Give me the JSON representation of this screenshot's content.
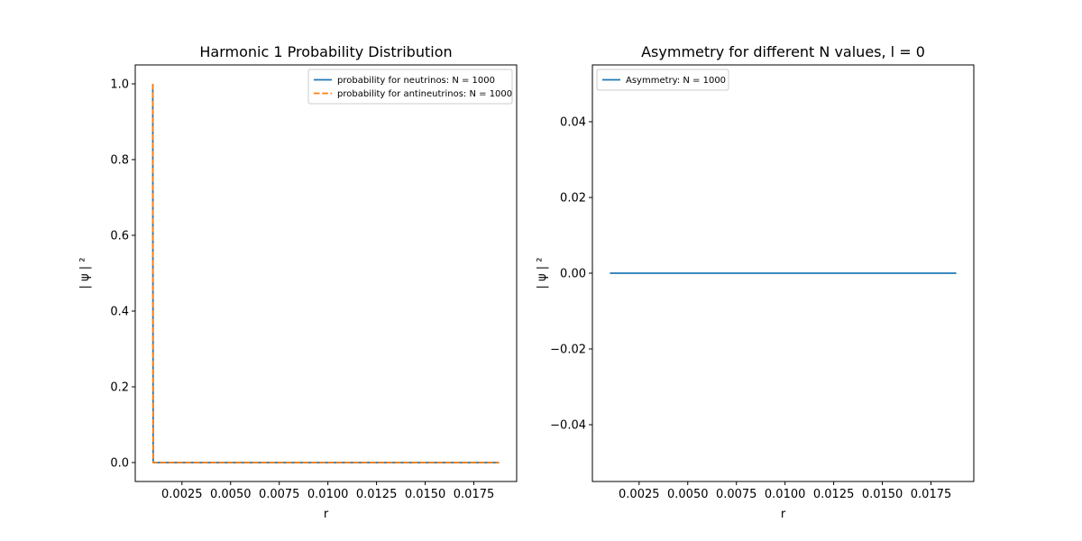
{
  "chart_data": [
    {
      "type": "line",
      "title": "Harmonic 1 Probability Distribution",
      "xlabel": "r",
      "ylabel": "| ψ | ²",
      "xlim": [
        0.0001,
        0.0197
      ],
      "ylim": [
        -0.05,
        1.05
      ],
      "xticks": [
        0.0025,
        0.005,
        0.0075,
        0.01,
        0.0125,
        0.015,
        0.0175
      ],
      "xtick_labels": [
        "0.0025",
        "0.0050",
        "0.0075",
        "0.0100",
        "0.0125",
        "0.0150",
        "0.0175"
      ],
      "yticks": [
        0.0,
        0.2,
        0.4,
        0.6,
        0.8,
        1.0
      ],
      "ytick_labels": [
        "0.0",
        "0.2",
        "0.4",
        "0.6",
        "0.8",
        "1.0"
      ],
      "grid": false,
      "legend_position": "upper-right",
      "series": [
        {
          "name": "probability for neutrinos: N = 1000",
          "color": "#1f77b4",
          "style": "solid",
          "x": [
            0.001,
            0.00102,
            0.00104,
            0.0188
          ],
          "y": [
            1.0,
            0.0,
            0.0,
            0.0
          ]
        },
        {
          "name": "probability for antineutrinos: N = 1000",
          "color": "#ff7f0e",
          "style": "dashed",
          "x": [
            0.001,
            0.00102,
            0.00104,
            0.0188
          ],
          "y": [
            1.0,
            0.0,
            0.0,
            0.0
          ]
        }
      ]
    },
    {
      "type": "line",
      "title": "Asymmetry for different N values, l = 0",
      "xlabel": "r",
      "ylabel": "| ψ | ²",
      "xlim": [
        0.0001,
        0.0197
      ],
      "ylim": [
        -0.055,
        0.055
      ],
      "xticks": [
        0.0025,
        0.005,
        0.0075,
        0.01,
        0.0125,
        0.015,
        0.0175
      ],
      "xtick_labels": [
        "0.0025",
        "0.0050",
        "0.0075",
        "0.0100",
        "0.0125",
        "0.0150",
        "0.0175"
      ],
      "yticks": [
        -0.04,
        -0.02,
        0.0,
        0.02,
        0.04
      ],
      "ytick_labels": [
        "−0.04",
        "−0.02",
        "0.00",
        "0.02",
        "0.04"
      ],
      "grid": false,
      "legend_position": "upper-left",
      "series": [
        {
          "name": "Asymmetry: N = 1000",
          "color": "#1f77b4",
          "style": "solid",
          "x": [
            0.001,
            0.0188
          ],
          "y": [
            0.0,
            0.0
          ]
        }
      ]
    }
  ]
}
